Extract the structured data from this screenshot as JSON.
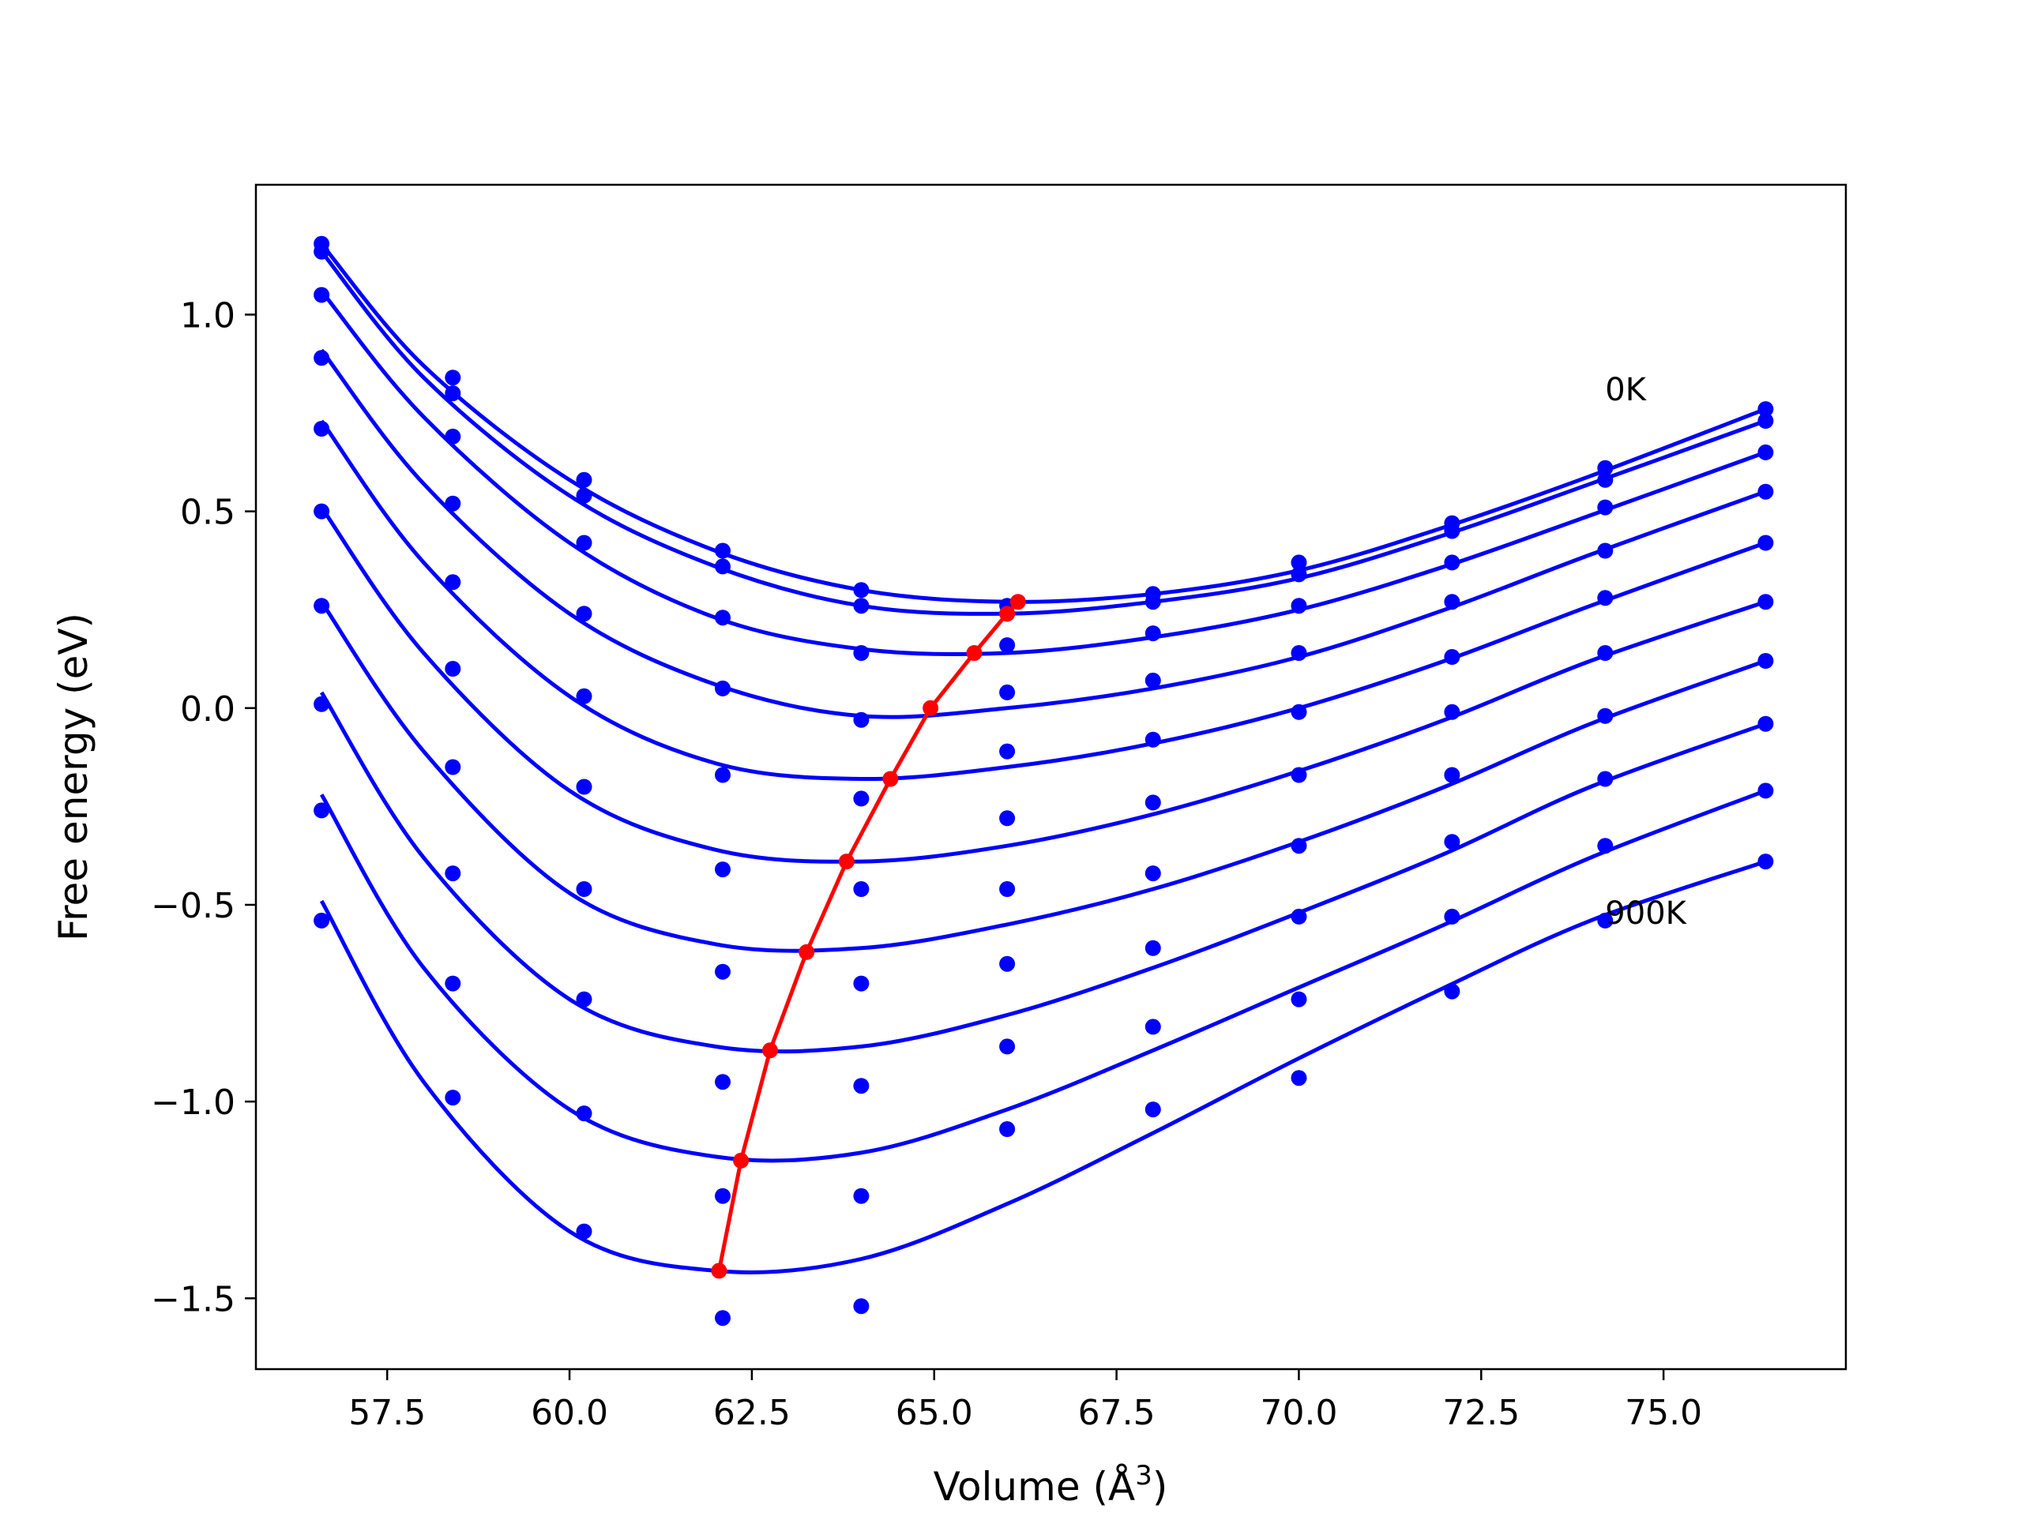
{
  "chart_data": {
    "type": "scatter",
    "title": "",
    "xlabel": "Volume (Å",
    "xlabel_superscript": "3",
    "xlabel_suffix": ")",
    "ylabel": "Free energy (eV)",
    "xlim": [
      55.7,
      77.5
    ],
    "ylim": [
      -1.68,
      1.33
    ],
    "x_ticks": [
      57.5,
      60.0,
      62.5,
      65.0,
      67.5,
      70.0,
      72.5,
      75.0
    ],
    "x_tick_labels": [
      "57.5",
      "60.0",
      "62.5",
      "65.0",
      "67.5",
      "70.0",
      "72.5",
      "75.0"
    ],
    "y_ticks": [
      1.0,
      0.5,
      0.0,
      -0.5,
      -1.0,
      -1.5
    ],
    "y_tick_labels": [
      "1.0",
      "0.5",
      "0.0",
      "−0.5",
      "−1.0",
      "−1.5"
    ],
    "grid": false,
    "colors": {
      "points": "#0000ff",
      "fits": "#0000ff",
      "minimum_line": "#ff0000"
    },
    "annotations": [
      {
        "text": "0K",
        "x": 74.2,
        "y": 0.81
      },
      {
        "text": "900K",
        "x": 74.2,
        "y": -0.52
      }
    ],
    "x": [
      56.6,
      58.4,
      60.2,
      62.1,
      64.0,
      66.0,
      68.0,
      70.0,
      72.1,
      74.2,
      76.4
    ],
    "series": [
      {
        "values": [
          1.18,
          0.84,
          0.58,
          0.4,
          0.3,
          0.26,
          0.29,
          0.37,
          0.47,
          0.61,
          0.76
        ]
      },
      {
        "values": [
          1.16,
          0.8,
          0.54,
          0.36,
          0.26,
          0.24,
          0.27,
          0.34,
          0.45,
          0.58,
          0.73
        ]
      },
      {
        "values": [
          1.05,
          0.69,
          0.42,
          0.23,
          0.14,
          0.16,
          0.19,
          0.26,
          0.37,
          0.51,
          0.65
        ]
      },
      {
        "values": [
          0.89,
          0.52,
          0.24,
          0.05,
          -0.03,
          0.04,
          0.07,
          0.14,
          0.27,
          0.4,
          0.55
        ]
      },
      {
        "values": [
          0.71,
          0.32,
          0.03,
          -0.17,
          -0.23,
          -0.11,
          -0.08,
          -0.01,
          0.13,
          0.28,
          0.42
        ]
      },
      {
        "values": [
          0.5,
          0.1,
          -0.2,
          -0.41,
          -0.46,
          -0.28,
          -0.24,
          -0.17,
          -0.01,
          0.14,
          0.27
        ]
      },
      {
        "values": [
          0.26,
          -0.15,
          -0.46,
          -0.67,
          -0.7,
          -0.46,
          -0.42,
          -0.35,
          -0.17,
          -0.02,
          0.12
        ]
      },
      {
        "values": [
          0.01,
          -0.42,
          -0.74,
          -0.95,
          -0.96,
          -0.65,
          -0.61,
          -0.53,
          -0.34,
          -0.18,
          -0.04
        ]
      },
      {
        "values": [
          -0.26,
          -0.7,
          -1.03,
          -1.24,
          -1.24,
          -0.86,
          -0.81,
          -0.74,
          -0.53,
          -0.35,
          -0.21
        ]
      },
      {
        "values": [
          -0.54,
          -0.99,
          -1.33,
          -1.55,
          -1.52,
          -1.07,
          -1.02,
          -0.94,
          -0.72,
          -0.54,
          -0.39
        ]
      }
    ],
    "fits": [
      {
        "x": [
          56.6,
          58.0,
          60.0,
          62.0,
          64.0,
          66.0,
          68.0,
          70.0,
          72.0,
          74.0,
          76.4
        ],
        "values": [
          1.18,
          0.87,
          0.58,
          0.4,
          0.3,
          0.27,
          0.29,
          0.35,
          0.46,
          0.59,
          0.76
        ]
      },
      {
        "x": [
          56.6,
          58.0,
          60.0,
          62.0,
          64.0,
          66.0,
          68.0,
          70.0,
          72.0,
          74.0,
          76.4
        ],
        "values": [
          1.16,
          0.84,
          0.54,
          0.36,
          0.26,
          0.24,
          0.27,
          0.33,
          0.44,
          0.57,
          0.73
        ]
      },
      {
        "x": [
          56.6,
          58.0,
          60.0,
          62.0,
          64.0,
          66.0,
          68.0,
          70.0,
          72.0,
          74.0,
          76.4
        ],
        "values": [
          1.06,
          0.74,
          0.42,
          0.23,
          0.15,
          0.14,
          0.18,
          0.25,
          0.36,
          0.49,
          0.65
        ]
      },
      {
        "x": [
          56.6,
          58.0,
          60.0,
          62.0,
          64.0,
          66.0,
          68.0,
          70.0,
          72.0,
          74.0,
          76.4
        ],
        "values": [
          0.91,
          0.57,
          0.24,
          0.06,
          -0.02,
          0.0,
          0.05,
          0.13,
          0.25,
          0.39,
          0.55
        ]
      },
      {
        "x": [
          56.6,
          58.0,
          60.0,
          62.0,
          64.0,
          66.0,
          68.0,
          70.0,
          72.0,
          74.0,
          76.4
        ],
        "values": [
          0.73,
          0.37,
          0.03,
          -0.14,
          -0.18,
          -0.15,
          -0.09,
          0.0,
          0.12,
          0.26,
          0.42
        ]
      },
      {
        "x": [
          56.6,
          58.0,
          60.0,
          62.0,
          64.0,
          66.0,
          68.0,
          70.0,
          72.0,
          74.0,
          76.4
        ],
        "values": [
          0.51,
          0.14,
          -0.21,
          -0.36,
          -0.39,
          -0.35,
          -0.27,
          -0.16,
          -0.03,
          0.12,
          0.27
        ]
      },
      {
        "x": [
          56.6,
          58.0,
          60.0,
          62.0,
          64.0,
          66.0,
          68.0,
          70.0,
          72.0,
          74.0,
          76.4
        ],
        "values": [
          0.27,
          -0.11,
          -0.47,
          -0.6,
          -0.61,
          -0.55,
          -0.46,
          -0.34,
          -0.2,
          -0.04,
          0.12
        ]
      },
      {
        "x": [
          56.6,
          58.0,
          60.0,
          62.0,
          64.0,
          66.0,
          68.0,
          70.0,
          72.0,
          74.0,
          76.4
        ],
        "values": [
          0.04,
          -0.38,
          -0.74,
          -0.86,
          -0.86,
          -0.78,
          -0.66,
          -0.52,
          -0.37,
          -0.2,
          -0.04
        ]
      },
      {
        "x": [
          56.6,
          58.0,
          60.0,
          62.0,
          64.0,
          66.0,
          68.0,
          70.0,
          72.0,
          74.0,
          76.4
        ],
        "values": [
          -0.22,
          -0.66,
          -1.02,
          -1.14,
          -1.13,
          -1.02,
          -0.87,
          -0.71,
          -0.55,
          -0.38,
          -0.21
        ]
      },
      {
        "x": [
          56.6,
          58.0,
          60.0,
          62.0,
          64.0,
          66.0,
          68.0,
          70.0,
          72.0,
          74.0,
          76.4
        ],
        "values": [
          -0.49,
          -0.95,
          -1.33,
          -1.43,
          -1.4,
          -1.26,
          -1.08,
          -0.89,
          -0.71,
          -0.54,
          -0.39
        ]
      }
    ],
    "minimum_line": {
      "x": [
        62.05,
        62.35,
        62.75,
        63.25,
        63.8,
        64.4,
        64.95,
        65.55,
        66.0,
        66.15
      ],
      "values": [
        -1.43,
        -1.15,
        -0.87,
        -0.62,
        -0.39,
        -0.18,
        0.0,
        0.14,
        0.24,
        0.27
      ]
    }
  }
}
